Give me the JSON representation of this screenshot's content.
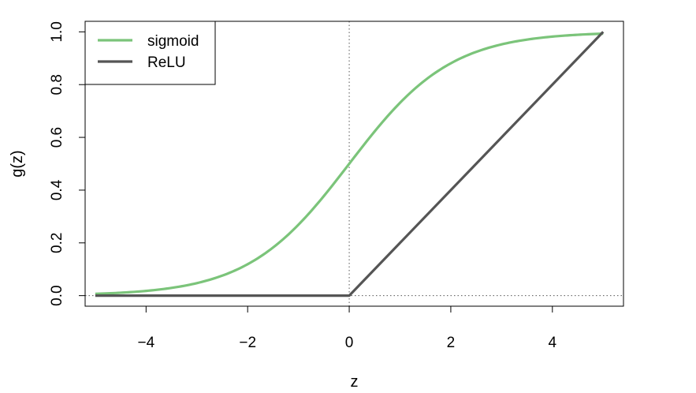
{
  "chart_data": {
    "type": "line",
    "title": "",
    "xlabel": "z",
    "ylabel": "g(z)",
    "xlim": [
      -5.2,
      5.4
    ],
    "ylim": [
      -0.04,
      1.04
    ],
    "x_ticks": [
      -4,
      -2,
      0,
      2,
      4
    ],
    "x_tick_labels": [
      "−4",
      "−2",
      "0",
      "2",
      "4"
    ],
    "y_ticks": [
      0.0,
      0.2,
      0.4,
      0.6,
      0.8,
      1.0
    ],
    "y_tick_labels": [
      "0.0",
      "0.2",
      "0.4",
      "0.6",
      "0.8",
      "1.0"
    ],
    "grid": false,
    "reference_lines": [
      {
        "orientation": "vertical",
        "value": 0,
        "style": "dotted"
      },
      {
        "orientation": "horizontal",
        "value": 0,
        "style": "dotted"
      }
    ],
    "legend": {
      "position": "top-left",
      "entries": [
        "sigmoid",
        "ReLU"
      ]
    },
    "series": [
      {
        "name": "sigmoid",
        "color": "#7bc47a",
        "x": [
          -5,
          -4.5,
          -4,
          -3.5,
          -3,
          -2.5,
          -2,
          -1.5,
          -1,
          -0.5,
          0,
          0.5,
          1,
          1.5,
          2,
          2.5,
          3,
          3.5,
          4,
          4.5,
          5
        ],
        "y": [
          0.0067,
          0.011,
          0.018,
          0.0293,
          0.0474,
          0.0759,
          0.1192,
          0.1824,
          0.2689,
          0.3775,
          0.5,
          0.6225,
          0.7311,
          0.8176,
          0.8808,
          0.9241,
          0.9526,
          0.9707,
          0.982,
          0.989,
          0.9933
        ]
      },
      {
        "name": "ReLU",
        "color": "#555555",
        "x": [
          -5,
          0,
          5
        ],
        "y": [
          0,
          0,
          1
        ]
      }
    ]
  }
}
